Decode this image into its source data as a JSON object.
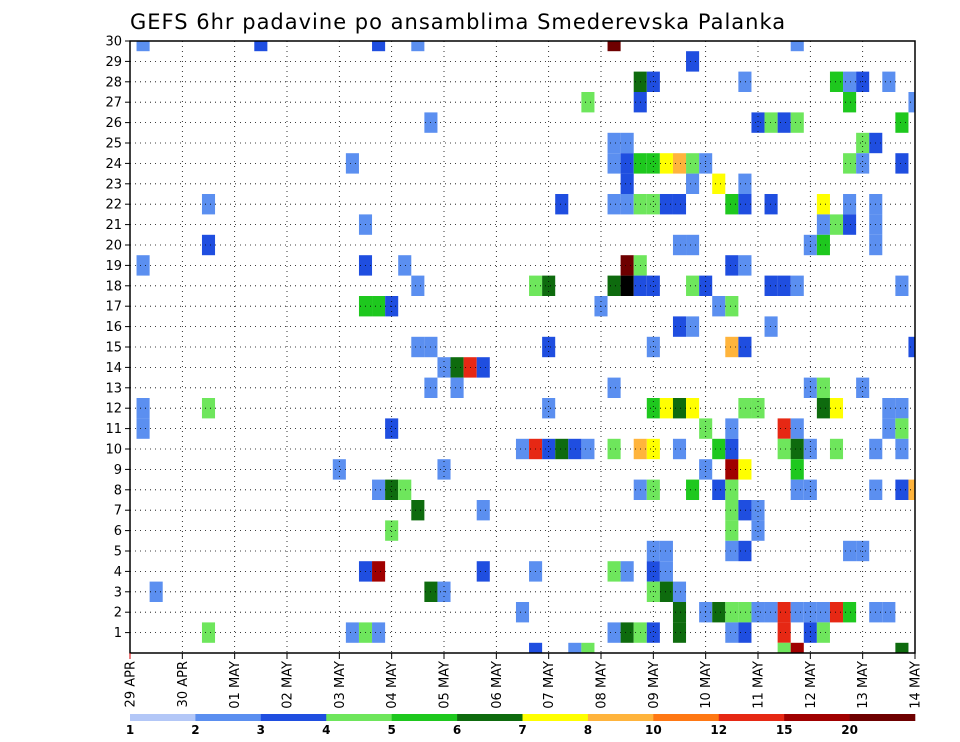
{
  "chart_data": {
    "type": "heatmap",
    "title": "GEFS 6hr padavine po ansamblima Smederevska Palanka",
    "xlabel": "",
    "ylabel": "",
    "x_tick_labels": [
      "29 APR",
      "30 APR",
      "01 MAY",
      "02 MAY",
      "03 MAY",
      "04 MAY",
      "05 MAY",
      "06 MAY",
      "07 MAY",
      "08 MAY",
      "09 MAY",
      "10 MAY",
      "11 MAY",
      "12 MAY",
      "13 MAY",
      "14 MAY"
    ],
    "x_range": [
      0,
      60
    ],
    "y_tick_labels": [
      "1",
      "2",
      "3",
      "4",
      "5",
      "6",
      "7",
      "8",
      "9",
      "10",
      "11",
      "12",
      "13",
      "14",
      "15",
      "16",
      "17",
      "18",
      "19",
      "20",
      "21",
      "22",
      "23",
      "24",
      "25",
      "26",
      "27",
      "28",
      "29",
      "30"
    ],
    "y_range": [
      0,
      30
    ],
    "grid": true,
    "colorbar": {
      "placement": "bottom",
      "labels": [
        "1",
        "2",
        "3",
        "4",
        "5",
        "6",
        "7",
        "8",
        "10",
        "12",
        "15",
        "20"
      ],
      "colors": [
        "#b3c7f7",
        "#5b8ff0",
        "#1f4ee0",
        "#6ee65c",
        "#1ec81e",
        "#0e6b0e",
        "#ffff00",
        "#ffb43c",
        "#ff7814",
        "#e62814",
        "#a00000",
        "#6e0000"
      ]
    },
    "cells": [
      [
        1,
        30,
        1
      ],
      [
        10,
        30,
        2
      ],
      [
        19,
        30,
        2
      ],
      [
        22,
        30,
        1
      ],
      [
        37,
        30,
        11
      ],
      [
        51,
        30,
        1
      ],
      [
        43,
        29,
        2
      ],
      [
        39,
        28,
        5
      ],
      [
        40,
        28,
        2
      ],
      [
        47,
        28,
        1
      ],
      [
        54,
        28,
        4
      ],
      [
        55,
        28,
        1
      ],
      [
        56,
        28,
        2
      ],
      [
        58,
        28,
        1
      ],
      [
        35,
        27,
        3
      ],
      [
        39,
        27,
        2
      ],
      [
        55,
        27,
        4
      ],
      [
        60,
        27,
        1
      ],
      [
        23,
        26,
        1
      ],
      [
        48,
        26,
        2
      ],
      [
        49,
        26,
        3
      ],
      [
        50,
        26,
        2
      ],
      [
        51,
        26,
        3
      ],
      [
        59,
        26,
        4
      ],
      [
        37,
        25,
        1
      ],
      [
        38,
        25,
        1
      ],
      [
        56,
        25,
        3
      ],
      [
        57,
        25,
        2
      ],
      [
        17,
        24,
        1
      ],
      [
        37,
        24,
        1
      ],
      [
        38,
        24,
        2
      ],
      [
        39,
        24,
        4
      ],
      [
        40,
        24,
        4
      ],
      [
        41,
        24,
        6
      ],
      [
        42,
        24,
        7
      ],
      [
        43,
        24,
        3
      ],
      [
        44,
        24,
        1
      ],
      [
        55,
        24,
        3
      ],
      [
        56,
        24,
        1
      ],
      [
        59,
        24,
        2
      ],
      [
        38,
        23,
        2
      ],
      [
        43,
        23,
        1
      ],
      [
        45,
        23,
        6
      ],
      [
        47,
        23,
        1
      ],
      [
        6,
        22,
        1
      ],
      [
        33,
        22,
        2
      ],
      [
        37,
        22,
        1
      ],
      [
        38,
        22,
        1
      ],
      [
        39,
        22,
        3
      ],
      [
        40,
        22,
        3
      ],
      [
        41,
        22,
        2
      ],
      [
        42,
        22,
        2
      ],
      [
        46,
        22,
        4
      ],
      [
        47,
        22,
        2
      ],
      [
        49,
        22,
        2
      ],
      [
        53,
        22,
        6
      ],
      [
        55,
        22,
        1
      ],
      [
        57,
        22,
        1
      ],
      [
        18,
        21,
        1
      ],
      [
        53,
        21,
        1
      ],
      [
        54,
        21,
        3
      ],
      [
        55,
        21,
        2
      ],
      [
        57,
        21,
        1
      ],
      [
        6,
        20,
        2
      ],
      [
        42,
        20,
        1
      ],
      [
        43,
        20,
        1
      ],
      [
        52,
        20,
        1
      ],
      [
        53,
        20,
        4
      ],
      [
        57,
        20,
        1
      ],
      [
        1,
        19,
        1
      ],
      [
        18,
        19,
        2
      ],
      [
        21,
        19,
        1
      ],
      [
        38,
        19,
        11
      ],
      [
        39,
        19,
        3
      ],
      [
        46,
        19,
        2
      ],
      [
        47,
        19,
        1
      ],
      [
        22,
        18,
        1
      ],
      [
        31,
        18,
        3
      ],
      [
        32,
        18,
        5
      ],
      [
        37,
        18,
        5
      ],
      [
        38,
        18,
        12
      ],
      [
        39,
        18,
        2
      ],
      [
        40,
        18,
        2
      ],
      [
        43,
        18,
        3
      ],
      [
        44,
        18,
        2
      ],
      [
        49,
        18,
        2
      ],
      [
        50,
        18,
        2
      ],
      [
        51,
        18,
        1
      ],
      [
        59,
        18,
        1
      ],
      [
        18,
        17,
        4
      ],
      [
        19,
        17,
        4
      ],
      [
        20,
        17,
        2
      ],
      [
        36,
        17,
        1
      ],
      [
        45,
        17,
        1
      ],
      [
        46,
        17,
        3
      ],
      [
        42,
        16,
        2
      ],
      [
        43,
        16,
        1
      ],
      [
        49,
        16,
        1
      ],
      [
        22,
        15,
        1
      ],
      [
        23,
        15,
        1
      ],
      [
        32,
        15,
        2
      ],
      [
        40,
        15,
        1
      ],
      [
        46,
        15,
        7
      ],
      [
        47,
        15,
        2
      ],
      [
        60,
        15,
        2
      ],
      [
        24,
        14,
        1
      ],
      [
        25,
        14,
        5
      ],
      [
        26,
        14,
        9
      ],
      [
        27,
        14,
        2
      ],
      [
        23,
        13,
        1
      ],
      [
        25,
        13,
        1
      ],
      [
        37,
        13,
        1
      ],
      [
        52,
        13,
        1
      ],
      [
        53,
        13,
        3
      ],
      [
        56,
        13,
        1
      ],
      [
        1,
        12,
        1
      ],
      [
        6,
        12,
        3
      ],
      [
        32,
        12,
        1
      ],
      [
        40,
        12,
        4
      ],
      [
        41,
        12,
        6
      ],
      [
        42,
        12,
        5
      ],
      [
        43,
        12,
        6
      ],
      [
        47,
        12,
        3
      ],
      [
        48,
        12,
        3
      ],
      [
        53,
        12,
        5
      ],
      [
        54,
        12,
        6
      ],
      [
        58,
        12,
        1
      ],
      [
        59,
        12,
        1
      ],
      [
        1,
        11,
        1
      ],
      [
        20,
        11,
        2
      ],
      [
        44,
        11,
        3
      ],
      [
        46,
        11,
        1
      ],
      [
        50,
        11,
        9
      ],
      [
        51,
        11,
        1
      ],
      [
        58,
        11,
        1
      ],
      [
        59,
        11,
        3
      ],
      [
        30,
        10,
        1
      ],
      [
        31,
        10,
        9
      ],
      [
        32,
        10,
        2
      ],
      [
        33,
        10,
        5
      ],
      [
        34,
        10,
        2
      ],
      [
        35,
        10,
        1
      ],
      [
        37,
        10,
        3
      ],
      [
        39,
        10,
        7
      ],
      [
        40,
        10,
        6
      ],
      [
        42,
        10,
        1
      ],
      [
        45,
        10,
        4
      ],
      [
        46,
        10,
        2
      ],
      [
        50,
        10,
        3
      ],
      [
        51,
        10,
        5
      ],
      [
        52,
        10,
        1
      ],
      [
        54,
        10,
        3
      ],
      [
        57,
        10,
        1
      ],
      [
        59,
        10,
        1
      ],
      [
        16,
        9,
        1
      ],
      [
        24,
        9,
        1
      ],
      [
        44,
        9,
        1
      ],
      [
        46,
        9,
        10
      ],
      [
        47,
        9,
        6
      ],
      [
        51,
        9,
        4
      ],
      [
        19,
        8,
        1
      ],
      [
        20,
        8,
        5
      ],
      [
        21,
        8,
        3
      ],
      [
        39,
        8,
        1
      ],
      [
        40,
        8,
        3
      ],
      [
        43,
        8,
        4
      ],
      [
        45,
        8,
        2
      ],
      [
        46,
        8,
        3
      ],
      [
        51,
        8,
        1
      ],
      [
        52,
        8,
        1
      ],
      [
        57,
        8,
        1
      ],
      [
        59,
        8,
        2
      ],
      [
        60,
        8,
        7
      ],
      [
        22,
        7,
        5
      ],
      [
        27,
        7,
        1
      ],
      [
        46,
        7,
        3
      ],
      [
        47,
        7,
        2
      ],
      [
        48,
        7,
        1
      ],
      [
        20,
        6,
        3
      ],
      [
        46,
        6,
        3
      ],
      [
        48,
        6,
        1
      ],
      [
        40,
        5,
        1
      ],
      [
        41,
        5,
        1
      ],
      [
        46,
        5,
        1
      ],
      [
        47,
        5,
        2
      ],
      [
        55,
        5,
        1
      ],
      [
        56,
        5,
        1
      ],
      [
        18,
        4,
        2
      ],
      [
        19,
        4,
        10
      ],
      [
        27,
        4,
        2
      ],
      [
        31,
        4,
        1
      ],
      [
        37,
        4,
        3
      ],
      [
        38,
        4,
        1
      ],
      [
        40,
        4,
        2
      ],
      [
        41,
        4,
        1
      ],
      [
        2,
        3,
        1
      ],
      [
        23,
        3,
        5
      ],
      [
        24,
        3,
        1
      ],
      [
        40,
        3,
        3
      ],
      [
        41,
        3,
        5
      ],
      [
        42,
        3,
        1
      ],
      [
        30,
        2,
        1
      ],
      [
        42,
        2,
        5
      ],
      [
        44,
        2,
        1
      ],
      [
        45,
        2,
        5
      ],
      [
        46,
        2,
        3
      ],
      [
        47,
        2,
        3
      ],
      [
        48,
        2,
        1
      ],
      [
        49,
        2,
        1
      ],
      [
        50,
        2,
        9
      ],
      [
        51,
        2,
        1
      ],
      [
        52,
        2,
        1
      ],
      [
        53,
        2,
        1
      ],
      [
        54,
        2,
        9
      ],
      [
        55,
        2,
        4
      ],
      [
        57,
        2,
        1
      ],
      [
        58,
        2,
        1
      ],
      [
        6,
        1,
        3
      ],
      [
        17,
        1,
        1
      ],
      [
        18,
        1,
        3
      ],
      [
        19,
        1,
        1
      ],
      [
        37,
        1,
        1
      ],
      [
        38,
        1,
        5
      ],
      [
        39,
        1,
        3
      ],
      [
        40,
        1,
        2
      ],
      [
        42,
        1,
        5
      ],
      [
        46,
        1,
        1
      ],
      [
        47,
        1,
        2
      ],
      [
        50,
        1,
        9
      ],
      [
        52,
        1,
        2
      ],
      [
        53,
        1,
        3
      ],
      [
        31,
        0,
        2
      ],
      [
        34,
        0,
        1
      ],
      [
        35,
        0,
        3
      ],
      [
        50,
        0,
        3
      ],
      [
        51,
        0,
        10
      ],
      [
        59,
        0,
        5
      ]
    ]
  }
}
